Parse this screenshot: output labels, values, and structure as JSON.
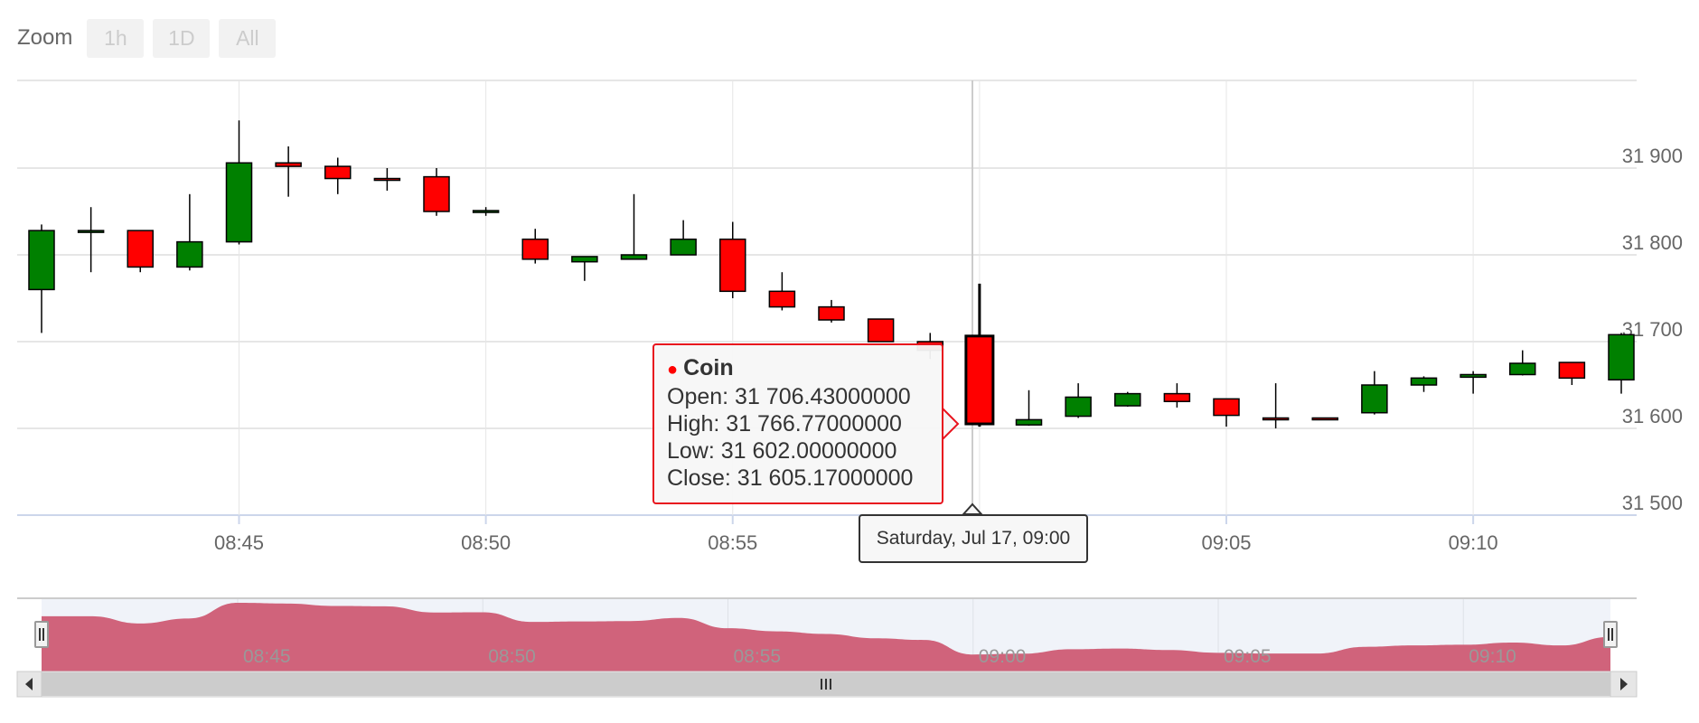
{
  "zoom": {
    "label": "Zoom",
    "buttons": [
      "1h",
      "1D",
      "All"
    ]
  },
  "tooltip": {
    "series": "Coin",
    "open": "Open: 31 706.43000000",
    "high": "High: 31 766.77000000",
    "low": "Low: 31 602.00000000",
    "close": "Close: 31 605.17000000",
    "x_label": "Saturday, Jul 17, 09:00",
    "color": "#ff0000"
  },
  "colors": {
    "up": "#008000",
    "down": "#ff0000",
    "navigator_fill": "#d2314b",
    "navigator_mask": "#ccd6eb",
    "grid": "#e6e6e6"
  },
  "navigator": {
    "tick_labels": [
      "08:45",
      "08:50",
      "08:55",
      "09:00",
      "09:05",
      "09:10"
    ]
  },
  "chart_data": {
    "type": "candlestick",
    "title": "",
    "series_name": "Coin",
    "x_tick_labels": [
      "08:45",
      "08:50",
      "08:55",
      "09:00",
      "09:05",
      "09:10"
    ],
    "y_tick_labels": [
      "31 500",
      "31 600",
      "31 700",
      "31 800",
      "31 900"
    ],
    "ylim": [
      31500,
      32000
    ],
    "x_range": [
      "08:41",
      "09:13"
    ],
    "tick_times": [
      45,
      50,
      55,
      60,
      65,
      70
    ],
    "hovered_time": "09:00",
    "candles": [
      {
        "time": "08:41",
        "open": 31760,
        "high": 31835,
        "low": 31710,
        "close": 31828
      },
      {
        "time": "08:42",
        "open": 31826,
        "high": 31855,
        "low": 31780,
        "close": 31828
      },
      {
        "time": "08:43",
        "open": 31828,
        "high": 31828,
        "low": 31780,
        "close": 31786
      },
      {
        "time": "08:44",
        "open": 31786,
        "high": 31870,
        "low": 31782,
        "close": 31815
      },
      {
        "time": "08:45",
        "open": 31815,
        "high": 31955,
        "low": 31812,
        "close": 31906
      },
      {
        "time": "08:46",
        "open": 31906,
        "high": 31925,
        "low": 31867,
        "close": 31902
      },
      {
        "time": "08:47",
        "open": 31902,
        "high": 31912,
        "low": 31870,
        "close": 31888
      },
      {
        "time": "08:48",
        "open": 31888,
        "high": 31900,
        "low": 31874,
        "close": 31886
      },
      {
        "time": "08:49",
        "open": 31890,
        "high": 31900,
        "low": 31845,
        "close": 31850
      },
      {
        "time": "08:50",
        "open": 31850,
        "high": 31855,
        "low": 31845,
        "close": 31851
      },
      {
        "time": "08:51",
        "open": 31818,
        "high": 31830,
        "low": 31790,
        "close": 31795
      },
      {
        "time": "08:52",
        "open": 31792,
        "high": 31797,
        "low": 31770,
        "close": 31798
      },
      {
        "time": "08:53",
        "open": 31795,
        "high": 31870,
        "low": 31796,
        "close": 31800
      },
      {
        "time": "08:54",
        "open": 31800,
        "high": 31840,
        "low": 31800,
        "close": 31818
      },
      {
        "time": "08:55",
        "open": 31818,
        "high": 31838,
        "low": 31750,
        "close": 31758
      },
      {
        "time": "08:56",
        "open": 31758,
        "high": 31780,
        "low": 31736,
        "close": 31740
      },
      {
        "time": "08:57",
        "open": 31740,
        "high": 31748,
        "low": 31722,
        "close": 31725
      },
      {
        "time": "08:58",
        "open": 31726,
        "high": 31726,
        "low": 31700,
        "close": 31700
      },
      {
        "time": "08:59",
        "open": 31700,
        "high": 31710,
        "low": 31680,
        "close": 31690
      },
      {
        "time": "09:00",
        "open": 31706.43,
        "high": 31766.77,
        "low": 31602.0,
        "close": 31605.17
      },
      {
        "time": "09:01",
        "open": 31604,
        "high": 31644,
        "low": 31603,
        "close": 31610
      },
      {
        "time": "09:02",
        "open": 31614,
        "high": 31652,
        "low": 31612,
        "close": 31636
      },
      {
        "time": "09:03",
        "open": 31626,
        "high": 31642,
        "low": 31625,
        "close": 31640
      },
      {
        "time": "09:04",
        "open": 31640,
        "high": 31652,
        "low": 31624,
        "close": 31631
      },
      {
        "time": "09:05",
        "open": 31634,
        "high": 31634,
        "low": 31602,
        "close": 31615
      },
      {
        "time": "09:06",
        "open": 31612,
        "high": 31652,
        "low": 31600,
        "close": 31611
      },
      {
        "time": "09:07",
        "open": 31612,
        "high": 31612,
        "low": 31610,
        "close": 31611
      },
      {
        "time": "09:08",
        "open": 31618,
        "high": 31666,
        "low": 31616,
        "close": 31650
      },
      {
        "time": "09:09",
        "open": 31650,
        "high": 31660,
        "low": 31642,
        "close": 31658
      },
      {
        "time": "09:10",
        "open": 31659,
        "high": 31666,
        "low": 31640,
        "close": 31662
      },
      {
        "time": "09:11",
        "open": 31662,
        "high": 31690,
        "low": 31661,
        "close": 31675
      },
      {
        "time": "09:12",
        "open": 31676,
        "high": 31676,
        "low": 31650,
        "close": 31658
      },
      {
        "time": "09:13",
        "open": 31656,
        "high": 31710,
        "low": 31640,
        "close": 31708
      }
    ]
  }
}
